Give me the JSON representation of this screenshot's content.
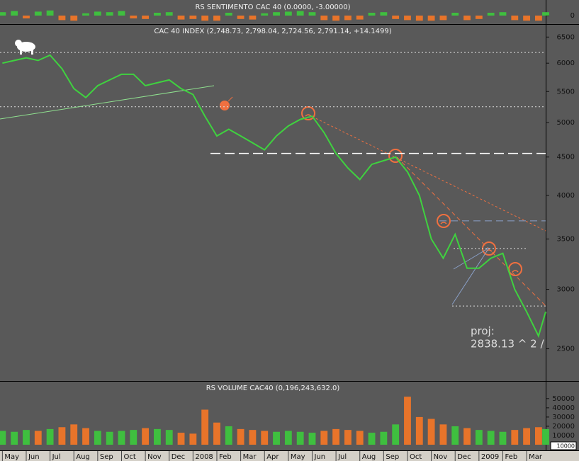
{
  "chart_data": [
    {
      "type": "bar",
      "title": "RS SENTIMENTO CAC 40 (0.0000, -3.00000)",
      "x": [
        0,
        0.5,
        1,
        1.5,
        2,
        2.5,
        3,
        3.5,
        4,
        4.5,
        5,
        5.5,
        6,
        6.5,
        7,
        7.5,
        8,
        8.5,
        9,
        9.5,
        10,
        10.5,
        11,
        11.5,
        12,
        12.5,
        13,
        13.5,
        14,
        14.5,
        15,
        15.5,
        16,
        16.5,
        17,
        17.5,
        18,
        18.5,
        19,
        19.5,
        20,
        20.5,
        21,
        21.5,
        22,
        22.5,
        22.8
      ],
      "values": [
        0.6,
        0.8,
        -0.5,
        0.7,
        0.9,
        -0.8,
        -0.9,
        0.4,
        0.7,
        0.6,
        0.8,
        -0.5,
        -0.6,
        0.5,
        0.6,
        -0.7,
        -0.6,
        -0.9,
        -0.9,
        0.5,
        -0.6,
        -0.7,
        0.4,
        0.6,
        0.7,
        0.8,
        0.6,
        -0.8,
        -0.9,
        -0.8,
        -0.7,
        0.5,
        0.6,
        -0.6,
        -0.8,
        -0.9,
        -0.9,
        -0.8,
        0.5,
        -0.8,
        -0.6,
        0.5,
        0.6,
        -0.8,
        -0.9,
        -0.9,
        0.6
      ],
      "colors": {
        "up": "#3fbf3f",
        "down": "#e8742a"
      },
      "ylim": [
        -1,
        1
      ],
      "yticks": [
        0
      ]
    },
    {
      "type": "line",
      "title": "CAC 40 INDEX (2,748.73, 2,798.04, 2,724.56, 2,791.14, +14.1499)",
      "x": [
        0,
        0.5,
        1,
        1.5,
        2,
        2.5,
        3,
        3.5,
        4,
        4.5,
        5,
        5.5,
        6,
        6.5,
        7,
        7.5,
        8,
        8.5,
        9,
        9.5,
        10,
        10.5,
        11,
        11.5,
        12,
        12.5,
        13,
        13.5,
        14,
        14.5,
        15,
        15.5,
        16,
        16.5,
        17,
        17.5,
        18,
        18.5,
        19,
        19.5,
        20,
        20.5,
        21,
        21.5,
        22,
        22.5,
        22.8
      ],
      "values": [
        6000,
        6050,
        6100,
        6050,
        6150,
        5900,
        5550,
        5400,
        5600,
        5700,
        5800,
        5800,
        5600,
        5650,
        5700,
        5550,
        5450,
        5100,
        4800,
        4900,
        4800,
        4700,
        4600,
        4800,
        4950,
        5050,
        5100,
        4850,
        4550,
        4350,
        4200,
        4400,
        4450,
        4500,
        4300,
        4000,
        3500,
        3300,
        3550,
        3200,
        3200,
        3300,
        3350,
        3000,
        2800,
        2600,
        2800
      ],
      "color": "#3fd23f",
      "log_scale": true,
      "ylim": [
        2270,
        6720
      ],
      "yticks": [
        2500,
        3000,
        3500,
        4000,
        4500,
        5000,
        5500,
        6000,
        6500
      ],
      "xlim": [
        -0.1,
        22.8
      ],
      "xticks": [
        {
          "value": 0,
          "label": "May"
        },
        {
          "value": 1,
          "label": "Jun"
        },
        {
          "value": 2,
          "label": "Jul"
        },
        {
          "value": 3,
          "label": "Aug"
        },
        {
          "value": 4,
          "label": "Sep"
        },
        {
          "value": 5,
          "label": "Oct"
        },
        {
          "value": 6,
          "label": "Nov"
        },
        {
          "value": 7,
          "label": "Dec"
        },
        {
          "value": 8,
          "label": "2008"
        },
        {
          "value": 9,
          "label": "Feb"
        },
        {
          "value": 10,
          "label": "Mar"
        },
        {
          "value": 11,
          "label": "Apr"
        },
        {
          "value": 12,
          "label": "May"
        },
        {
          "value": 13,
          "label": "Jun"
        },
        {
          "value": 14,
          "label": "Jul"
        },
        {
          "value": 15,
          "label": "Aug"
        },
        {
          "value": 16,
          "label": "Sep"
        },
        {
          "value": 17,
          "label": "Oct"
        },
        {
          "value": 18,
          "label": "Nov"
        },
        {
          "value": 19,
          "label": "Dec"
        },
        {
          "value": 20,
          "label": "2009"
        },
        {
          "value": 21,
          "label": "Feb"
        },
        {
          "value": 22,
          "label": "Mar"
        }
      ],
      "levels": [
        6200,
        5250,
        4550,
        3700,
        3400,
        2850
      ],
      "annotations": [
        "proj:",
        "2838.13 ^ 2 /"
      ]
    },
    {
      "type": "bar",
      "title": "RS VOLUME CAC40 (0,196,243,632.0)",
      "x": [
        0,
        0.5,
        1,
        1.5,
        2,
        2.5,
        3,
        3.5,
        4,
        4.5,
        5,
        5.5,
        6,
        6.5,
        7,
        7.5,
        8,
        8.5,
        9,
        9.5,
        10,
        10.5,
        11,
        11.5,
        12,
        12.5,
        13,
        13.5,
        14,
        14.5,
        15,
        15.5,
        16,
        16.5,
        17,
        17.5,
        18,
        18.5,
        19,
        19.5,
        20,
        20.5,
        21,
        21.5,
        22,
        22.5,
        22.8
      ],
      "values": [
        15000,
        14000,
        16000,
        15000,
        17000,
        19000,
        22000,
        18000,
        15000,
        14000,
        15000,
        16000,
        18000,
        17000,
        16000,
        13000,
        12000,
        38000,
        24000,
        20000,
        17000,
        16000,
        15000,
        14000,
        15000,
        14000,
        13000,
        15000,
        17000,
        16000,
        15000,
        13000,
        14000,
        22000,
        52000,
        30000,
        28000,
        22000,
        20000,
        18000,
        16000,
        15000,
        14000,
        16000,
        18000,
        19000,
        17000
      ],
      "colors": {
        "up": "#3fbf3f",
        "down": "#e8742a"
      },
      "ylim": [
        0,
        56800
      ],
      "yticks": [
        10000,
        20000,
        30000,
        40000,
        50000
      ],
      "unit_label": "10000"
    }
  ]
}
